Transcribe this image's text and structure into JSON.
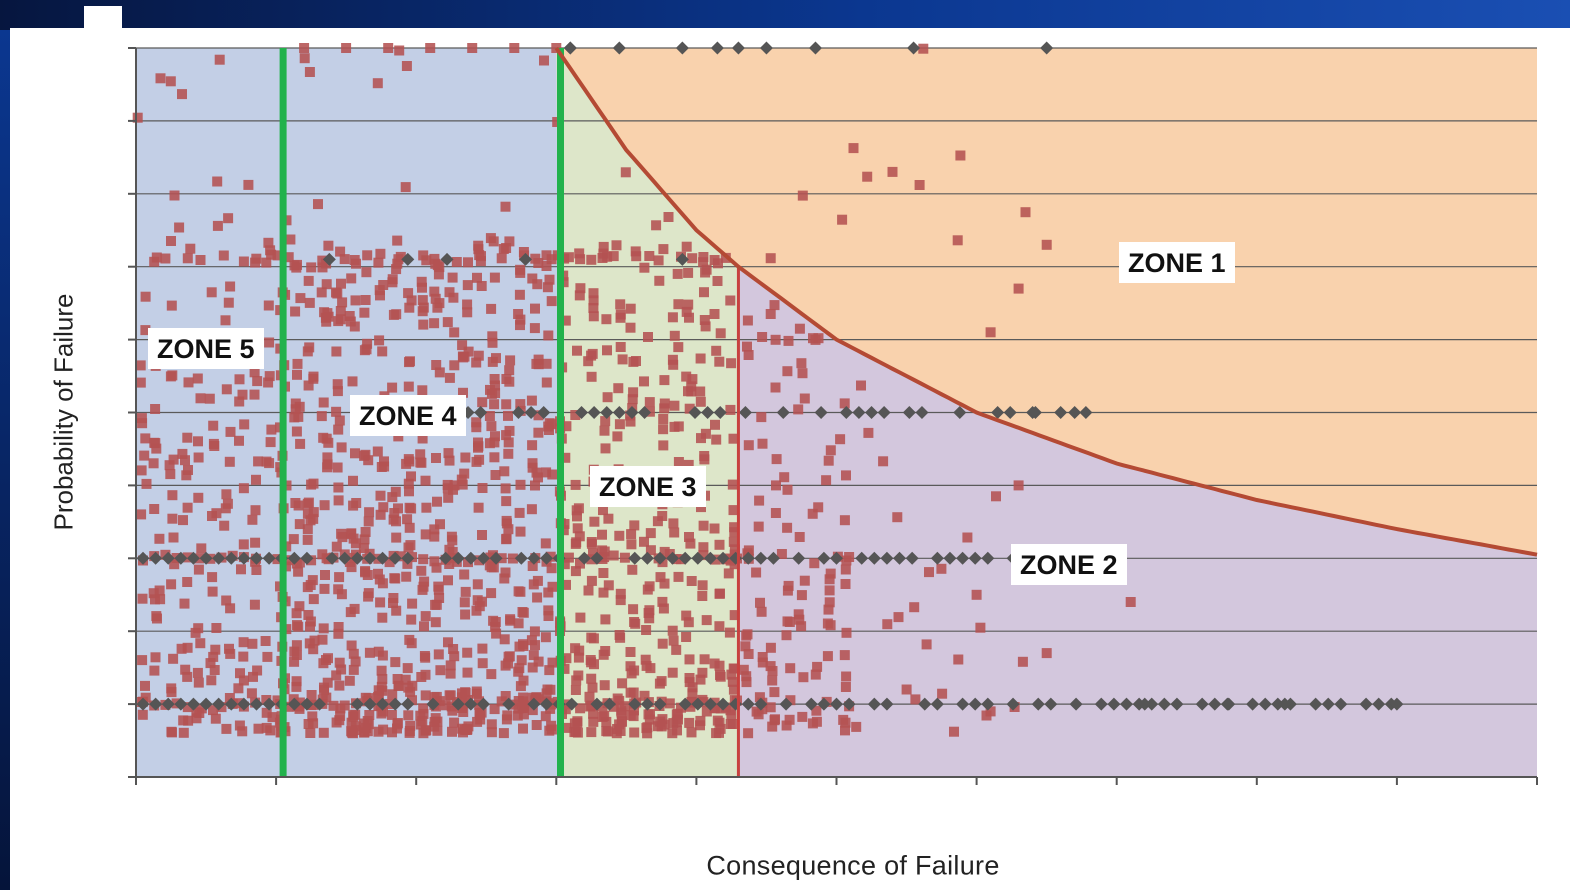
{
  "chart_data": {
    "type": "scatter",
    "title": "",
    "xlabel": "Consequence of Failure",
    "ylabel": "Probability of Failure",
    "xlim": [
      0,
      10
    ],
    "ylim": [
      0,
      10
    ],
    "grid": "horizontal",
    "x_ticks": 10,
    "y_ticks": 10,
    "zones": [
      {
        "name": "ZONE 1",
        "region": "above frontier curve",
        "color": "#f9d2ad"
      },
      {
        "name": "ZONE 2",
        "region": "below frontier, right of x=4.3",
        "color": "#d3c7dd"
      },
      {
        "name": "ZONE 3",
        "region": "x 3.0 to 4.3, below frontier",
        "color": "#dde6c9"
      },
      {
        "name": "ZONE 4",
        "region": "x 1.05 to 3.0",
        "color": "#c3cfe6"
      },
      {
        "name": "ZONE 5",
        "region": "x 0 to 1.05",
        "color": "#c3cfe6"
      }
    ],
    "boundaries": [
      {
        "x": 1.05,
        "color": "#22b24c"
      },
      {
        "x": 3.03,
        "color": "#22b24c"
      },
      {
        "x": 4.3,
        "color": "#c8413f"
      }
    ],
    "frontier_curve": {
      "color": "#b44a34",
      "x": [
        3.0,
        3.5,
        4.0,
        4.3,
        5.0,
        6.0,
        7.0,
        8.0,
        9.0,
        10.0
      ],
      "y": [
        10.0,
        8.6,
        7.5,
        7.0,
        6.0,
        5.0,
        4.3,
        3.8,
        3.4,
        3.05
      ]
    },
    "series": [
      {
        "marker": "square",
        "color": "#b45252",
        "x_range": [
          0,
          6.5
        ],
        "y_range": [
          0,
          10
        ],
        "dense_rows_y": [
          7.1,
          3.0,
          1.0
        ]
      },
      {
        "marker": "diamond",
        "color": "#555555",
        "rows": [
          {
            "y": 1.0,
            "x_range": [
              0.05,
              9.0
            ]
          },
          {
            "y": 3.0,
            "x_range": [
              0.05,
              6.3
            ]
          },
          {
            "y": 5.0,
            "x_range": [
              1.2,
              6.8
            ]
          },
          {
            "y": 7.1,
            "x_range": [
              1.1,
              4.1
            ]
          },
          {
            "y": 10.0,
            "x_range": [
              3.1,
              6.5
            ]
          }
        ]
      }
    ]
  }
}
